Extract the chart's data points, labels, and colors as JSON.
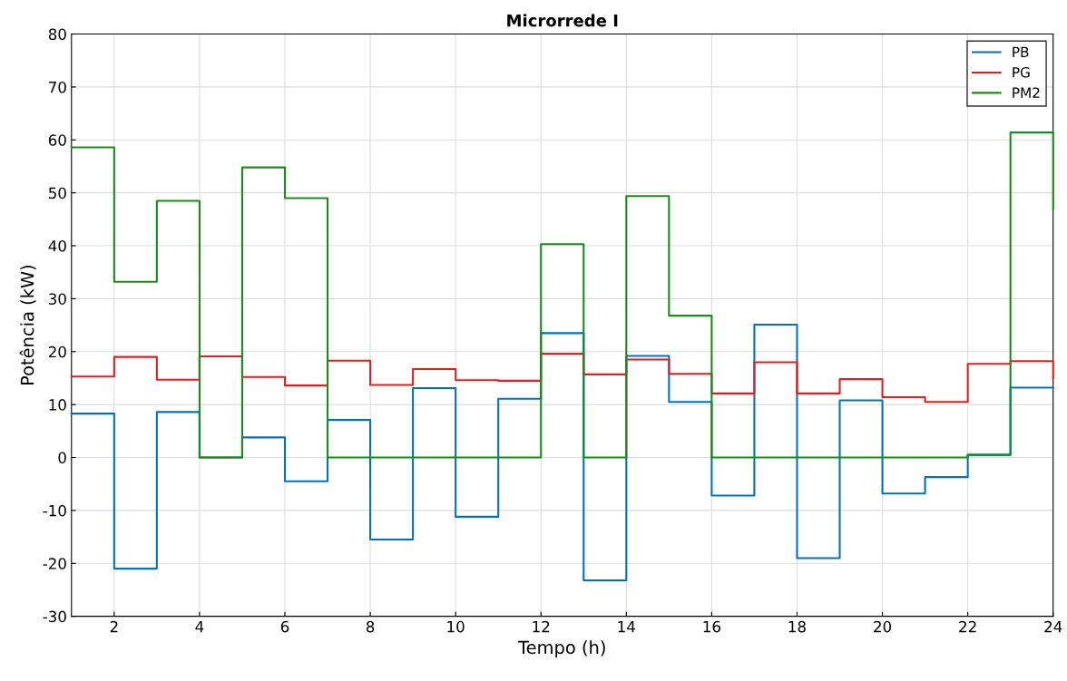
{
  "chart_data": {
    "type": "step",
    "title": "Microrrede I",
    "xlabel": "Tempo (h)",
    "ylabel": "Potência (kW)",
    "x": [
      1,
      2,
      3,
      4,
      5,
      6,
      7,
      8,
      9,
      10,
      11,
      12,
      13,
      14,
      15,
      16,
      17,
      18,
      19,
      20,
      21,
      22,
      23,
      24
    ],
    "series": [
      {
        "name": "PB",
        "color": "#0072bd",
        "values": [
          8.3,
          -21,
          8.6,
          0,
          3.8,
          -4.5,
          7.1,
          -15.5,
          13.1,
          -11.2,
          11.1,
          23.5,
          -23.2,
          19.2,
          10.5,
          -7.2,
          25.1,
          -19,
          10.8,
          -6.8,
          -3.7,
          0.5,
          13.2,
          13.2
        ]
      },
      {
        "name": "PG",
        "color": "#e02020",
        "values": [
          15.3,
          19,
          14.7,
          19.1,
          15.2,
          13.6,
          18.3,
          13.7,
          16.7,
          14.6,
          14.5,
          19.6,
          15.7,
          18.5,
          15.8,
          12.1,
          18,
          12.1,
          14.8,
          11.4,
          10.5,
          17.7,
          18.2,
          15
        ]
      },
      {
        "name": "PM2",
        "color": "#1a8c1a",
        "values": [
          58.6,
          33.2,
          48.5,
          0,
          54.8,
          49,
          0,
          0,
          0,
          0,
          0,
          40.3,
          0,
          49.4,
          26.8,
          0,
          0,
          0,
          0,
          0,
          0,
          0.5,
          61.4,
          47
        ]
      }
    ],
    "xlim": [
      1,
      24
    ],
    "xticks": [
      2,
      4,
      6,
      8,
      10,
      12,
      14,
      16,
      18,
      20,
      22,
      24
    ],
    "ylim": [
      -30,
      80
    ],
    "yticks": [
      -30,
      -20,
      -10,
      0,
      10,
      20,
      30,
      40,
      50,
      60,
      70,
      80
    ],
    "grid": true,
    "legend": "top right",
    "line_style": "solid",
    "marker": "none"
  }
}
